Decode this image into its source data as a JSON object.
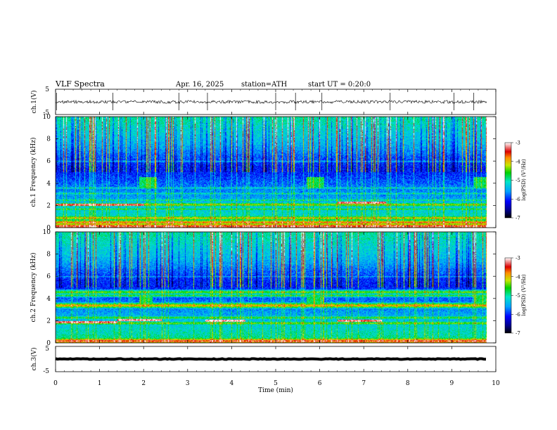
{
  "header": {
    "title": "VLF Spectra",
    "date": "Apr. 16, 2025",
    "station": "station=ATH",
    "start": "start UT = 0:20:0"
  },
  "chart_data": {
    "type": "heatmap",
    "xlabel": "Time (min)",
    "xlim": [
      0,
      10
    ],
    "x_ticks": [
      "0",
      "1",
      "2",
      "3",
      "4",
      "5",
      "6",
      "7",
      "8",
      "9",
      "10"
    ],
    "data_end_min": 9.8,
    "panels": [
      {
        "id": "ch1-waveform",
        "type": "line",
        "ylabel": "ch.1(V)",
        "ylim": [
          -5,
          5
        ],
        "y_ticks": [
          "5",
          "-5"
        ],
        "baseline": 0,
        "noise_amplitude": 0.6,
        "spikes_min": [
          0.02,
          1.3,
          2.8,
          3.45,
          5.0,
          5.45,
          6.05,
          7.6,
          9.05,
          9.5
        ]
      },
      {
        "id": "ch1-spectrogram",
        "type": "heatmap",
        "ylabel": "ch.1 Frequency (kHz)",
        "ylim": [
          0,
          10
        ],
        "y_ticks": [
          "0",
          "2",
          "4",
          "6",
          "8",
          "10"
        ],
        "colorbar": {
          "label": "log(PSD) (V²/Hz)",
          "range": [
            -7,
            -3
          ],
          "ticks": [
            "-3",
            "-4",
            "-5",
            "-6",
            "-7"
          ]
        },
        "bands": [
          {
            "f": 0.15,
            "level": -3.2
          },
          {
            "f": 0.5,
            "level": -3.6
          },
          {
            "f": 0.9,
            "level": -4.0
          },
          {
            "f": 1.7,
            "level": -4.6
          },
          {
            "f": 2.1,
            "level": -4.2
          },
          {
            "f": 2.5,
            "level": -4.8
          },
          {
            "f": 3.1,
            "level": -5.0
          },
          {
            "f": 3.6,
            "level": -5.1
          },
          {
            "f": 4.9,
            "level": -6.2
          },
          {
            "f": 6.0,
            "level": -5.3
          }
        ],
        "tone_segments": [
          {
            "t0": 0.0,
            "t1": 2.0,
            "f": 2.1,
            "level": -3.4
          },
          {
            "t0": 6.4,
            "t1": 7.5,
            "f": 2.3,
            "level": -3.3
          }
        ],
        "bursts": [
          {
            "t0": 1.9,
            "t1": 2.3,
            "f0": 3.6,
            "f1": 4.6
          },
          {
            "t0": 5.7,
            "t1": 6.1,
            "f0": 3.6,
            "f1": 4.6
          },
          {
            "t0": 9.5,
            "t1": 9.8,
            "f0": 3.6,
            "f1": 4.6
          }
        ]
      },
      {
        "id": "ch2-spectrogram",
        "type": "heatmap",
        "ylabel": "ch.2 Frequency (kHz)",
        "ylim": [
          0,
          10
        ],
        "y_ticks": [
          "0",
          "2",
          "4",
          "6",
          "8",
          "10"
        ],
        "colorbar": {
          "label": "log(PSD) (V²/Hz)",
          "range": [
            -7,
            -3
          ],
          "ticks": [
            "-3",
            "-4",
            "-5",
            "-6",
            "-7"
          ]
        },
        "bands": [
          {
            "f": 0.2,
            "level": -3.3
          },
          {
            "f": 1.8,
            "level": -4.3
          },
          {
            "f": 2.3,
            "level": -4.5
          },
          {
            "f": 3.4,
            "level": -3.8
          },
          {
            "f": 4.3,
            "level": -4.6
          },
          {
            "f": 4.6,
            "level": -4.3
          },
          {
            "f": 6.0,
            "level": -5.4
          }
        ],
        "tone_segments": [
          {
            "t0": 0.0,
            "t1": 1.4,
            "f": 1.9,
            "level": -3.3
          },
          {
            "t0": 1.4,
            "t1": 2.4,
            "f": 2.1,
            "level": -3.2
          },
          {
            "t0": 3.4,
            "t1": 4.3,
            "f": 2.0,
            "level": -3.1
          },
          {
            "t0": 6.4,
            "t1": 7.4,
            "f": 2.0,
            "level": -3.3
          }
        ],
        "bursts": [
          {
            "t0": 1.9,
            "t1": 2.2,
            "f0": 3.6,
            "f1": 4.2
          },
          {
            "t0": 5.7,
            "t1": 6.1,
            "f0": 3.6,
            "f1": 4.2
          },
          {
            "t0": 9.5,
            "t1": 9.8,
            "f0": 3.6,
            "f1": 4.2
          }
        ]
      },
      {
        "id": "ch3-waveform",
        "type": "line",
        "ylabel": "ch.3(V)",
        "ylim": [
          -5,
          5
        ],
        "y_ticks": [
          "5",
          "-5"
        ],
        "baseline": 0,
        "noise_amplitude": 0.15
      }
    ]
  }
}
